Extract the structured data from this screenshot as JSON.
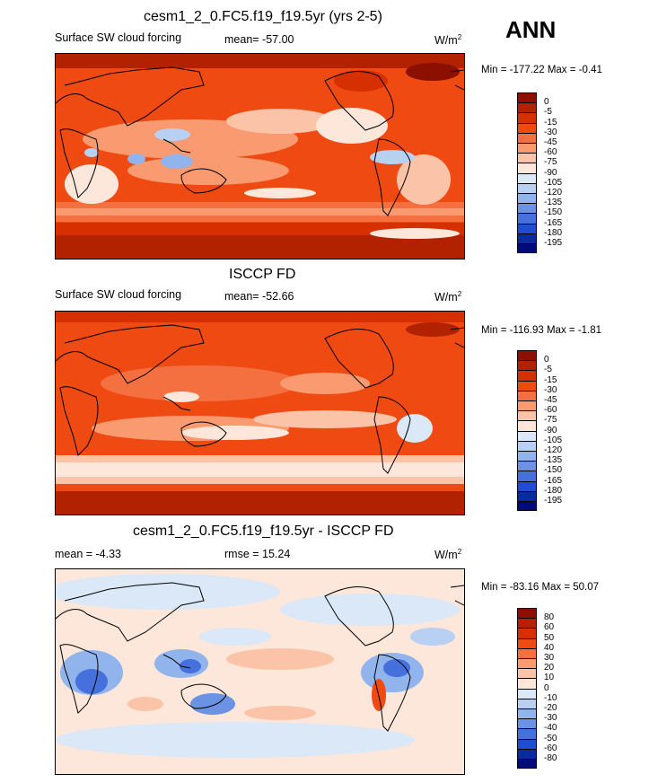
{
  "season": "ANN",
  "unit_base": "W/m",
  "unit_exp": "2",
  "unit_plain": "W/m²",
  "panels": [
    {
      "title": "cesm1_2_0.FC5.f19_f19.5yr (yrs 2-5)",
      "variable": "Surface SW cloud forcing",
      "mean_text": "mean= -57.00",
      "minmax_text": "Min = -177.22 Max =  -0.41",
      "levels": [
        "0",
        "-5",
        "-15",
        "-30",
        "-45",
        "-60",
        "-75",
        "-90",
        "-105",
        "-120",
        "-135",
        "-150",
        "-165",
        "-180",
        "-195"
      ],
      "colors": [
        "#8b1000",
        "#b32200",
        "#d73000",
        "#ee4a12",
        "#f57040",
        "#f99a70",
        "#fbc4a8",
        "#fde6da",
        "#dbe8f8",
        "#b8d0f2",
        "#92b4ec",
        "#6c92e4",
        "#4670dc",
        "#204cd0",
        "#0a2aa0",
        "#000a78"
      ]
    },
    {
      "title": "ISCCP FD",
      "variable": "Surface SW cloud forcing",
      "mean_text": "mean= -52.66",
      "minmax_text": "Min = -116.93 Max =  -1.81",
      "levels": [
        "0",
        "-5",
        "-15",
        "-30",
        "-45",
        "-60",
        "-75",
        "-90",
        "-105",
        "-120",
        "-135",
        "-150",
        "-165",
        "-180",
        "-195"
      ],
      "colors": [
        "#8b1000",
        "#b32200",
        "#d73000",
        "#ee4a12",
        "#f57040",
        "#f99a70",
        "#fbc4a8",
        "#fde6da",
        "#dbe8f8",
        "#b8d0f2",
        "#92b4ec",
        "#6c92e4",
        "#4670dc",
        "#204cd0",
        "#0a2aa0",
        "#000a78"
      ]
    },
    {
      "title": "cesm1_2_0.FC5.f19_f19.5yr - ISCCP FD",
      "mean_text": "mean =  -4.33",
      "rmse_text": "rmse =  15.24",
      "minmax_text": "Min = -83.16 Max =  50.07",
      "levels": [
        "80",
        "60",
        "50",
        "40",
        "30",
        "20",
        "10",
        "0",
        "-10",
        "-20",
        "-30",
        "-40",
        "-50",
        "-60",
        "-80"
      ],
      "colors": [
        "#8b1000",
        "#b32200",
        "#d73000",
        "#ee4a12",
        "#f57040",
        "#f99a70",
        "#fbc4a8",
        "#fde6da",
        "#dbe8f8",
        "#b8d0f2",
        "#92b4ec",
        "#6c92e4",
        "#4670dc",
        "#204cd0",
        "#0a2aa0",
        "#000a78"
      ]
    }
  ],
  "chart_data": [
    {
      "type": "heatmap",
      "title": "cesm1_2_0.FC5.f19_f19.5yr (yrs 2-5)",
      "variable": "Surface SW cloud forcing",
      "units": "W/m2",
      "mean": -57.0,
      "min": -177.22,
      "max": -0.41,
      "contour_levels": [
        0,
        -5,
        -15,
        -30,
        -45,
        -60,
        -75,
        -90,
        -105,
        -120,
        -135,
        -150,
        -165,
        -180,
        -195
      ],
      "projection": "cylindrical equidistant, centered on 180"
    },
    {
      "type": "heatmap",
      "title": "ISCCP FD",
      "variable": "Surface SW cloud forcing",
      "units": "W/m2",
      "mean": -52.66,
      "min": -116.93,
      "max": -1.81,
      "contour_levels": [
        0,
        -5,
        -15,
        -30,
        -45,
        -60,
        -75,
        -90,
        -105,
        -120,
        -135,
        -150,
        -165,
        -180,
        -195
      ],
      "projection": "cylindrical equidistant, centered on 180"
    },
    {
      "type": "heatmap",
      "title": "cesm1_2_0.FC5.f19_f19.5yr - ISCCP FD",
      "units": "W/m2",
      "mean": -4.33,
      "rmse": 15.24,
      "min": -83.16,
      "max": 50.07,
      "contour_levels": [
        80,
        60,
        50,
        40,
        30,
        20,
        10,
        0,
        -10,
        -20,
        -30,
        -40,
        -50,
        -60,
        -80
      ],
      "projection": "cylindrical equidistant, centered on 180"
    }
  ]
}
